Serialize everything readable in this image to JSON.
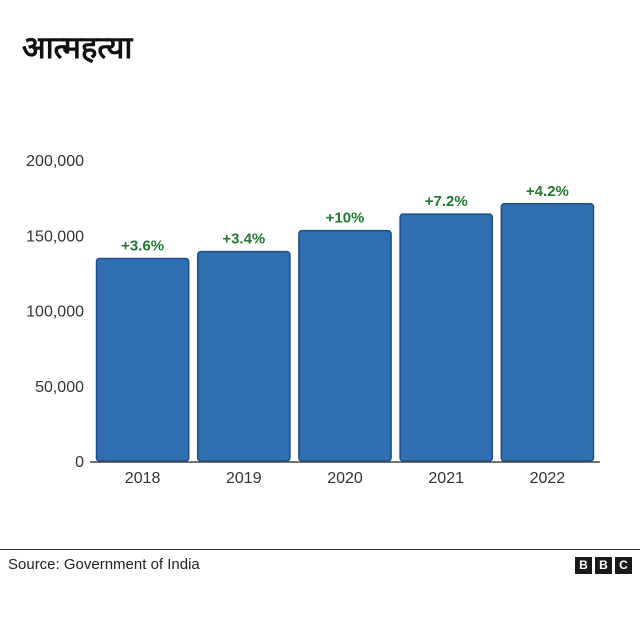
{
  "title": "आत्महत्या",
  "chart_data": {
    "type": "bar",
    "title": "आत्महत्या",
    "xlabel": "",
    "ylabel": "",
    "categories": [
      "2018",
      "2019",
      "2020",
      "2021",
      "2022"
    ],
    "values": [
      134516,
      139123,
      153052,
      164033,
      170924
    ],
    "data_labels": [
      "+3.6%",
      "+3.4%",
      "+10%",
      "+7.2%",
      "+4.2%"
    ],
    "ylim": [
      0,
      200000
    ],
    "yticks": [
      0,
      50000,
      100000,
      150000,
      200000
    ],
    "ytick_labels": [
      "0",
      "50,000",
      "100,000",
      "150,000",
      "200,000"
    ],
    "grid": false,
    "legend": "none",
    "colors": {
      "bar": "#2f6fb0",
      "bar_border": "#1d4f86",
      "data_label": "#1f7a2e",
      "axis": "#444444",
      "tick_text": "#333333"
    }
  },
  "footer": {
    "source": "Source: Government of India",
    "logo_letters": [
      "B",
      "B",
      "C"
    ]
  }
}
